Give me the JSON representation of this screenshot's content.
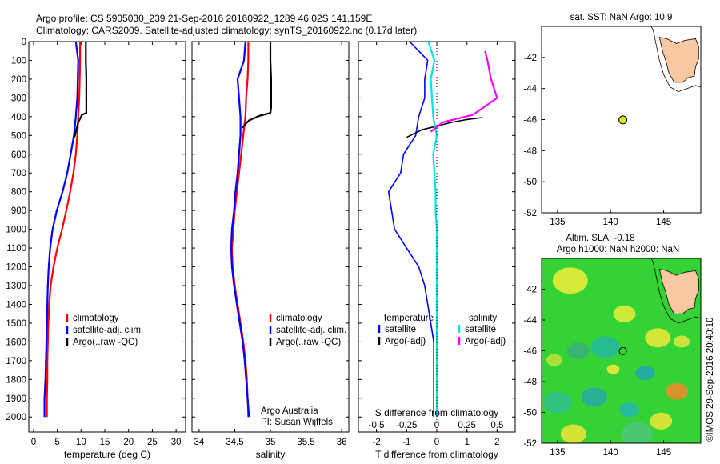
{
  "header": {
    "line1": "Argo profile: CS 5905030_239 21-Sep-2016 20160922_1289 46.02S 141.159E",
    "line2": "Climatology: CARS2009. Satellite-adjusted climatology: synTS_20160922.nc (0.17d later)"
  },
  "colors": {
    "climatology": "#ff0000",
    "satellite": "#0000ff",
    "argo": "#000000",
    "sat_salinity": "#00e6e6",
    "argo_salinity": "#ff00ff"
  },
  "chart_data": [
    {
      "type": "line",
      "xlabel": "temperature (deg C)",
      "ylabel": "",
      "xlim": [
        -1,
        32
      ],
      "ylim": [
        2080,
        0
      ],
      "xticks": [
        0,
        5,
        10,
        15,
        20,
        25,
        30
      ],
      "yticks": [
        0,
        100,
        200,
        300,
        400,
        500,
        600,
        700,
        800,
        900,
        1000,
        1100,
        1200,
        1300,
        1400,
        1500,
        1600,
        1700,
        1800,
        1900,
        2000
      ],
      "legend": {
        "position": "lower-middle",
        "items": [
          "climatology",
          "satellite-adj. clim.",
          "Argo(..raw -QC)"
        ]
      },
      "series": [
        {
          "name": "climatology",
          "color": "#ff0000",
          "x": [
            9.8,
            9.8,
            9.7,
            9.6,
            9.4,
            9.2,
            8.9,
            8.4,
            7.7,
            6.9,
            6.0,
            5.0,
            4.2,
            3.6,
            3.3,
            3.1,
            3.0,
            2.9,
            2.9,
            2.8,
            2.8
          ],
          "y": [
            0,
            100,
            200,
            300,
            400,
            500,
            600,
            700,
            800,
            900,
            1000,
            1100,
            1200,
            1300,
            1400,
            1500,
            1600,
            1700,
            1800,
            1900,
            2000
          ]
        },
        {
          "name": "satellite-adj. clim.",
          "color": "#0000ff",
          "x": [
            8.9,
            9.4,
            9.3,
            9.2,
            8.9,
            8.5,
            7.8,
            7.1,
            6.1,
            4.9,
            4.0,
            3.5,
            3.2,
            3.0,
            2.9,
            2.8,
            2.7,
            2.6,
            2.5,
            2.3,
            2.3
          ],
          "y": [
            0,
            100,
            200,
            300,
            400,
            500,
            600,
            700,
            800,
            900,
            1000,
            1100,
            1200,
            1300,
            1400,
            1500,
            1600,
            1700,
            1800,
            1900,
            2000
          ]
        },
        {
          "name": "Argo(..raw -QC)",
          "color": "#000000",
          "x": [
            11.0,
            11.0,
            11.1,
            11.1,
            11.1,
            11.1,
            10.2,
            9.4,
            8.6
          ],
          "y": [
            0,
            100,
            200,
            300,
            350,
            380,
            390,
            430,
            510
          ]
        }
      ]
    },
    {
      "type": "line",
      "xlabel": "salinity",
      "ylabel": "",
      "xlim": [
        33.9,
        36.1
      ],
      "ylim": [
        2080,
        0
      ],
      "xticks": [
        34,
        34.5,
        35,
        35.5,
        36
      ],
      "legend": {
        "position": "lower-middle",
        "items": [
          "climatology",
          "satellite-adj. clim.",
          "Argo(..raw -QC)"
        ]
      },
      "annotation": [
        "Argo Australia",
        "PI: Susan Wijffels"
      ],
      "series": [
        {
          "name": "climatology",
          "color": "#ff0000",
          "x": [
            34.69,
            34.69,
            34.68,
            34.66,
            34.65,
            34.62,
            34.59,
            34.56,
            34.53,
            34.5,
            34.48,
            34.46,
            34.47,
            34.5,
            34.54,
            34.58,
            34.62,
            34.65,
            34.67,
            34.68,
            34.69
          ],
          "y": [
            0,
            100,
            200,
            300,
            400,
            500,
            600,
            700,
            800,
            900,
            1000,
            1100,
            1200,
            1300,
            1400,
            1500,
            1600,
            1700,
            1800,
            1900,
            2000
          ]
        },
        {
          "name": "satellite-adj. clim.",
          "color": "#0000ff",
          "x": [
            34.65,
            34.63,
            34.54,
            34.56,
            34.58,
            34.58,
            34.56,
            34.54,
            34.51,
            34.49,
            34.46,
            34.45,
            34.46,
            34.49,
            34.53,
            34.57,
            34.61,
            34.64,
            34.66,
            34.68,
            34.7
          ],
          "y": [
            0,
            100,
            200,
            300,
            400,
            500,
            600,
            700,
            800,
            900,
            1000,
            1100,
            1200,
            1300,
            1400,
            1500,
            1600,
            1700,
            1800,
            1900,
            2000
          ]
        },
        {
          "name": "Argo(..raw -QC)",
          "color": "#000000",
          "x": [
            35.0,
            35.0,
            35.01,
            35.01,
            35.01,
            35.0,
            34.85,
            34.7,
            34.6
          ],
          "y": [
            0,
            100,
            200,
            300,
            350,
            380,
            395,
            420,
            460
          ]
        }
      ]
    },
    {
      "type": "line",
      "xlabel": "T difference from climatology",
      "xlabel_top": "S difference from climatology",
      "xlim": [
        -2.6,
        2.6
      ],
      "ylim": [
        2080,
        0
      ],
      "xticks": [
        -2,
        -1,
        0,
        1,
        2
      ],
      "xticks_top": [
        -0.5,
        -0.25,
        0,
        0.25,
        0.5
      ],
      "legend_titles": [
        "temperature",
        "salinity"
      ],
      "legend": {
        "position": "lower-middle",
        "items": [
          "satellite",
          "Argo(-adj)",
          "satellite",
          "Argo(-adj)"
        ]
      },
      "series": [
        {
          "name": "satellite",
          "group": "temperature",
          "color": "#0000ff",
          "x": [
            -0.9,
            -0.3,
            -0.4,
            -0.4,
            -0.6,
            -0.7,
            -1.1,
            -1.2,
            -1.6,
            -1.5,
            -1.4,
            -1.0,
            -0.6,
            -0.4,
            -0.3,
            -0.2,
            -0.1,
            -0.1,
            -0.1,
            -0.1,
            -0.1
          ],
          "y": [
            0,
            100,
            200,
            300,
            400,
            500,
            600,
            700,
            800,
            900,
            1000,
            1100,
            1200,
            1300,
            1400,
            1500,
            1600,
            1700,
            1800,
            1900,
            2000
          ]
        },
        {
          "name": "Argo(-adj)",
          "group": "temperature",
          "color": "#000000",
          "x": [
            -1.0,
            -0.5,
            0.5,
            1.0,
            1.5
          ],
          "y": [
            510,
            470,
            430,
            415,
            405
          ]
        },
        {
          "name": "satellite",
          "group": "salinity",
          "color": "#00e6e6",
          "x": [
            -0.07,
            -0.02,
            -0.05,
            -0.04,
            -0.03,
            0.0,
            -0.03,
            -0.02,
            -0.01,
            -0.01,
            0.0,
            0.0,
            0.0,
            0.0,
            0.0,
            0.0,
            0.0,
            0.0,
            0.0,
            0.0,
            0.0
          ],
          "y": [
            0,
            100,
            200,
            300,
            400,
            500,
            600,
            700,
            800,
            900,
            1000,
            1100,
            1200,
            1300,
            1400,
            1500,
            1600,
            1700,
            1800,
            1900,
            2000
          ]
        },
        {
          "name": "Argo(-adj)",
          "group": "salinity",
          "color": "#ff00ff",
          "x": [
            0.4,
            0.42,
            0.45,
            0.5,
            0.3,
            0.05,
            -0.05
          ],
          "y": [
            50,
            100,
            200,
            300,
            390,
            430,
            480
          ]
        }
      ]
    },
    {
      "type": "scatter",
      "title": "sat. SST: NaN Argo: 10.9",
      "xlim": [
        133.5,
        148.5
      ],
      "ylim": [
        -52,
        -40
      ],
      "xticks": [
        135,
        140,
        145
      ],
      "yticks": [
        -42,
        -44,
        -46,
        -48,
        -50,
        -52
      ],
      "points": [
        {
          "x": 141.159,
          "y": -46.02
        }
      ]
    },
    {
      "type": "heatmap",
      "title_lines": [
        "Altim. SLA: -0.18",
        "Argo h1000: NaN h2000: NaN"
      ],
      "xlim": [
        133.5,
        148.5
      ],
      "ylim": [
        -52,
        -40
      ],
      "xticks": [
        135,
        140,
        145
      ],
      "yticks": [
        -42,
        -44,
        -46,
        -48,
        -50,
        -52
      ],
      "points": [
        {
          "x": 141.159,
          "y": -46.02
        }
      ],
      "watermark": "©IMOS 29-Sep-2016 20:40:10"
    }
  ]
}
